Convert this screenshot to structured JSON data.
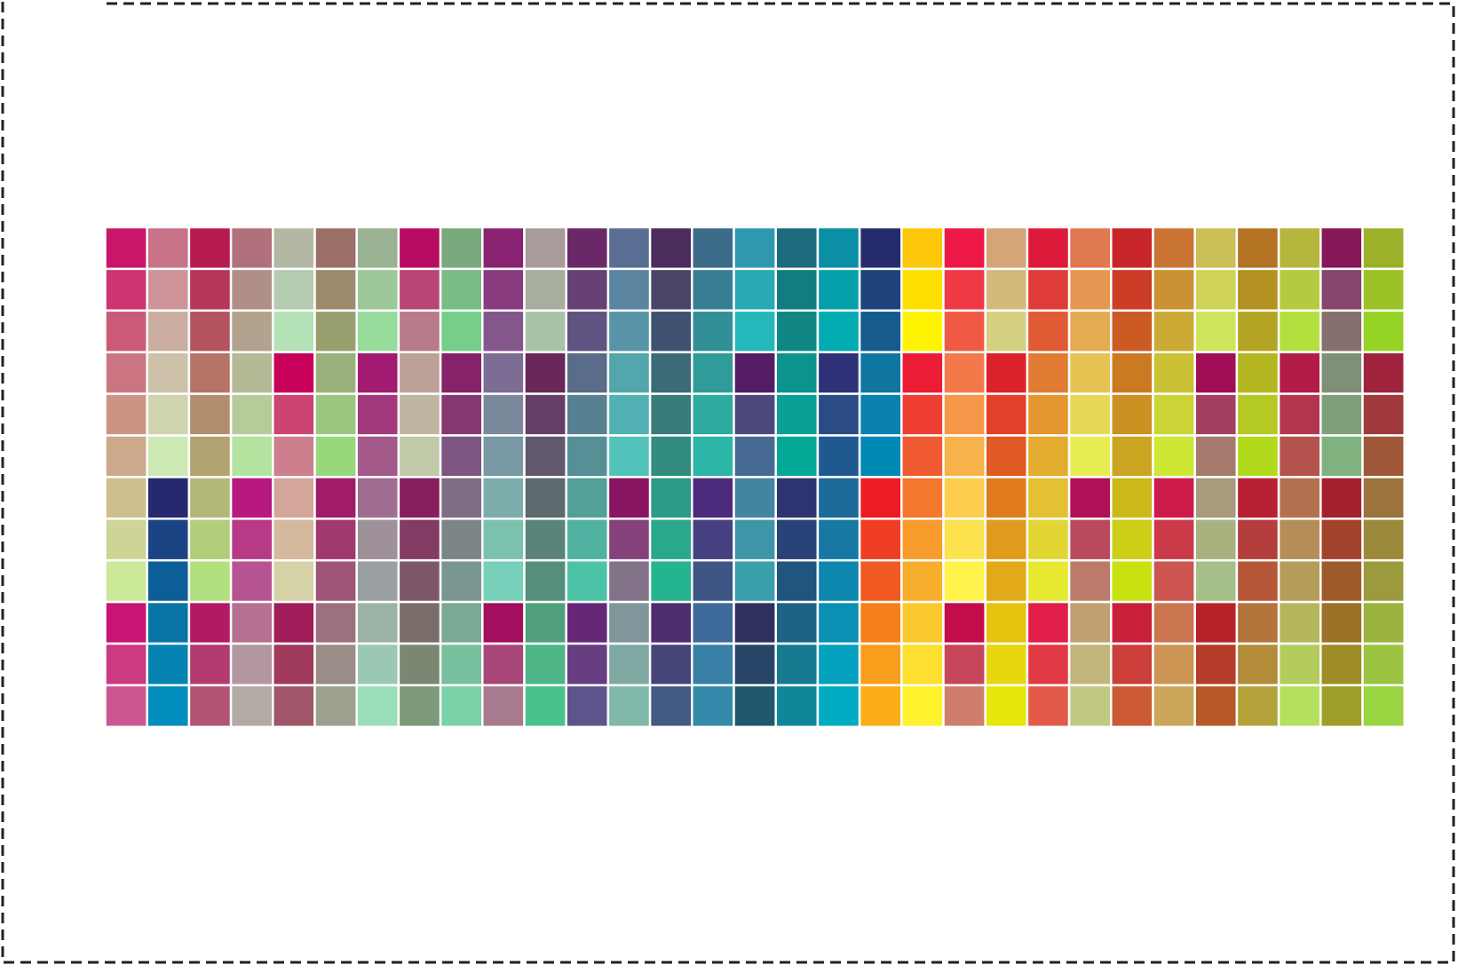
{
  "swatches": {
    "rows": [
      [
        "#c8166a",
        "#c97388",
        "#b81a52",
        "#b0707c",
        "#b3b8a5",
        "#9c7068",
        "#99b393",
        "#b80c62",
        "#79a97d",
        "#8a2272",
        "#a89c9a",
        "#6a2868",
        "#5a6d93",
        "#4a2d5c",
        "#3d6b8a",
        "#2f98b0",
        "#1d6b7c",
        "#0a8fa5",
        "#262b6b",
        "#fbc708",
        "#ed1846",
        "#d3a577",
        "#de1a3a",
        "#e07850",
        "#c8252a",
        "#c97433",
        "#cbbf57",
        "#b37323",
        "#b5b63e",
        "#861857",
        "#9cb02a"
      ],
      [
        "#cc3570",
        "#cf9499",
        "#b73759",
        "#b09086",
        "#b4cdb0",
        "#9c8b6d",
        "#9cc89a",
        "#b74576",
        "#78bd85",
        "#8a3a7e",
        "#a8ae9d",
        "#663f74",
        "#5a84a0",
        "#4a4466",
        "#377e93",
        "#2aa9b6",
        "#137c80",
        "#069fac",
        "#1d437a",
        "#fde000",
        "#ef3a45",
        "#d3ba7a",
        "#e03c37",
        "#e69852",
        "#cb3d26",
        "#cb9133",
        "#cfd35a",
        "#b39122",
        "#b3cb3e",
        "#86456a",
        "#9bc226"
      ],
      [
        "#cb5978",
        "#cbada2",
        "#b5545f",
        "#b3a38e",
        "#b4e2b7",
        "#9a9f70",
        "#98dc9c",
        "#b77b8a",
        "#76cf88",
        "#83568c",
        "#a9c3a8",
        "#5f5382",
        "#5894a8",
        "#3f5170",
        "#328e97",
        "#26b7bb",
        "#108784",
        "#02abb0",
        "#155c8c",
        "#fef300",
        "#f05a44",
        "#d3d07f",
        "#e05a34",
        "#e4ab52",
        "#cb5b23",
        "#ccaa36",
        "#cfe55c",
        "#b4a423",
        "#b3df3f",
        "#85706f",
        "#95d425"
      ],
      [
        "#cc7582",
        "#cdc2a9",
        "#b47466",
        "#b5b995",
        "#c8005a",
        "#9bb17b",
        "#a31a72",
        "#bca198",
        "#86226a",
        "#7d6c94",
        "#6a275a",
        "#5a6c88",
        "#53a6ab",
        "#3c6b78",
        "#2f9c9a",
        "#541c66",
        "#0c938e",
        "#2e3178",
        "#0f76a0",
        "#ec1c34",
        "#f4794a",
        "#dc2229",
        "#e27b34",
        "#e5c352",
        "#cc7a22",
        "#cbc135",
        "#a10e55",
        "#b4b720",
        "#b31c47",
        "#7f9078",
        "#a0233e"
      ],
      [
        "#cc9485",
        "#cfd4ae",
        "#b38e6e",
        "#b5cc98",
        "#cb4474",
        "#9ac67e",
        "#a3397c",
        "#c0b5a0",
        "#853772",
        "#7c889c",
        "#663f68",
        "#578090",
        "#52b2b3",
        "#377c7b",
        "#2eaaa1",
        "#4d487c",
        "#08a096",
        "#2a4b84",
        "#0a82ad",
        "#ef3e32",
        "#f69849",
        "#e04128",
        "#e4962f",
        "#e6d854",
        "#cc9122",
        "#ccd337",
        "#a43f61",
        "#b4c923",
        "#b3354e",
        "#7f9f7b",
        "#a0393b"
      ],
      [
        "#cca98b",
        "#cde9b4",
        "#b1a36f",
        "#b2e39f",
        "#cd7f8e",
        "#99d77d",
        "#a3598a",
        "#c0caa8",
        "#7c5580",
        "#7898a4",
        "#62586e",
        "#568f96",
        "#51c3bb",
        "#328c7f",
        "#2cb6a8",
        "#466a93",
        "#03a896",
        "#20598f",
        "#0089b5",
        "#f05a30",
        "#f7b24c",
        "#e05a23",
        "#e4ac2f",
        "#e8ed54",
        "#cba521",
        "#cee634",
        "#a67a6c",
        "#b2d91b",
        "#b4524e",
        "#7fb27f",
        "#9e5839"
      ],
      [
        "#cdbf8e",
        "#262870",
        "#b3b879",
        "#b8197e",
        "#d4a59a",
        "#a01c68",
        "#a06e90",
        "#871e5e",
        "#7d6e84",
        "#7cadab",
        "#5d6b70",
        "#52a098",
        "#891562",
        "#2c9a88",
        "#4d2b7c",
        "#4384a0",
        "#2e3470",
        "#1c6a98",
        "#ed1c24",
        "#f4792f",
        "#fdcd4d",
        "#e07b1c",
        "#e4c132",
        "#b01056",
        "#ccb91a",
        "#cc1b4b",
        "#a89b7b",
        "#b82133",
        "#b3704e",
        "#a3212e",
        "#9c733c"
      ],
      [
        "#cdd496",
        "#1c4383",
        "#b3cd7a",
        "#b73a87",
        "#d4b99d",
        "#a0396e",
        "#9e9199",
        "#823b62",
        "#7c8689",
        "#7cc0b0",
        "#5a8479",
        "#50b2a0",
        "#85427a",
        "#29a88c",
        "#454080",
        "#3d96a8",
        "#294378",
        "#1678a3",
        "#ef3e24",
        "#f69b2c",
        "#fde24f",
        "#e09a1c",
        "#e4d632",
        "#b84a5c",
        "#ccce17",
        "#cc3a4a",
        "#a7b27f",
        "#b43e3b",
        "#b48d58",
        "#a2412c",
        "#9c8a3c"
      ],
      [
        "#cce99a",
        "#0c5e98",
        "#b2e07f",
        "#b55490",
        "#d5d2a8",
        "#9e5576",
        "#9a9fa3",
        "#7e566a",
        "#7a9690",
        "#76d0ba",
        "#568e7c",
        "#4cc2a6",
        "#837389",
        "#24b490",
        "#3f5585",
        "#3ba0ab",
        "#21547e",
        "#0e87ae",
        "#f05a22",
        "#f8ae2d",
        "#fff34b",
        "#e2aa18",
        "#e7e931",
        "#bc7a6a",
        "#c9e20f",
        "#cc5550",
        "#a6be88",
        "#b55637",
        "#b39d59",
        "#9e5a2a",
        "#9b9b3d"
      ],
      [
        "#c81474",
        "#0975a6",
        "#b31a66",
        "#b57092",
        "#a11d59",
        "#9c707f",
        "#9bb3a6",
        "#7a6e6a",
        "#7aaa96",
        "#a30e5e",
        "#50a07e",
        "#672778",
        "#80969a",
        "#4d2c70",
        "#3e6a99",
        "#30305e",
        "#1d6387",
        "#0a90b4",
        "#f5801c",
        "#fbc92e",
        "#c20c4b",
        "#e6c30f",
        "#e11e48",
        "#c19f70",
        "#c81f3a",
        "#cc7651",
        "#b52329",
        "#b3743a",
        "#b3b65a",
        "#9e7128",
        "#9cb23e"
      ],
      [
        "#cb3a82",
        "#0584b3",
        "#b23a71",
        "#b296a0",
        "#a03a5d",
        "#9a8c87",
        "#9bc8b2",
        "#7a8873",
        "#77c09e",
        "#a84677",
        "#4db586",
        "#663d80",
        "#7fa8a2",
        "#464578",
        "#3880a5",
        "#284567",
        "#167a91",
        "#04a1be",
        "#f99e1c",
        "#fde02f",
        "#c7465a",
        "#e8d70f",
        "#e23a44",
        "#c1b57c",
        "#cc3e39",
        "#cc9553",
        "#b43c28",
        "#b38c3a",
        "#b3cc5c",
        "#9e8c28",
        "#9bc443"
      ],
      [
        "#cc5790",
        "#028cbd",
        "#b35475",
        "#b3a9a5",
        "#a05668",
        "#9ca08f",
        "#9bdeba",
        "#7c9a79",
        "#7ad1a8",
        "#a87a8d",
        "#4ac28d",
        "#5f538c",
        "#80b8aa",
        "#435a82",
        "#348aaa",
        "#1f576f",
        "#108799",
        "#00abc2",
        "#fbad18",
        "#fef22c",
        "#cf7d6c",
        "#e6e60a",
        "#e35a4a",
        "#c1c883",
        "#cc5a35",
        "#cca75a",
        "#b65926",
        "#b3a23a",
        "#b5e05e",
        "#9e9d28",
        "#9ad440"
      ]
    ]
  }
}
